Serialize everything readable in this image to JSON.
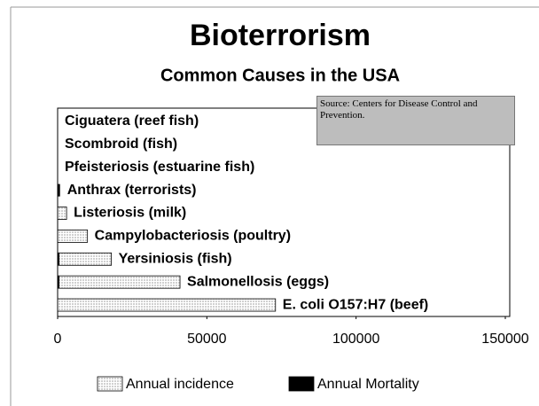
{
  "chart_data": {
    "type": "hbar",
    "title": "Bioterrorism",
    "subtitle": "Common Causes in the USA",
    "source": "Source: Centers for Disease Control and Prevention.",
    "categories": [
      "Ciguatera (reef fish)",
      "Scombroid (fish)",
      "Pfeisteriosis (estuarine fish)",
      "Anthrax (terrorists)",
      "Listeriosis (milk)",
      "Campylobacteriosis (poultry)",
      "Yersiniosis (fish)",
      "Salmonellosis (eggs)",
      "E. coli O157:H7 (beef)"
    ],
    "series": [
      {
        "name": "Annual incidence",
        "color": "#d0d0d0",
        "values": [
          0,
          0,
          0,
          0,
          3000,
          10000,
          18000,
          41000,
          73000
        ]
      },
      {
        "name": "Annual Mortality",
        "color": "#000000",
        "values": [
          0,
          0,
          0,
          800,
          100,
          100,
          600,
          600,
          60
        ]
      }
    ],
    "xlim": [
      0,
      150000
    ],
    "xticks": [
      0,
      50000,
      100000,
      150000
    ]
  }
}
